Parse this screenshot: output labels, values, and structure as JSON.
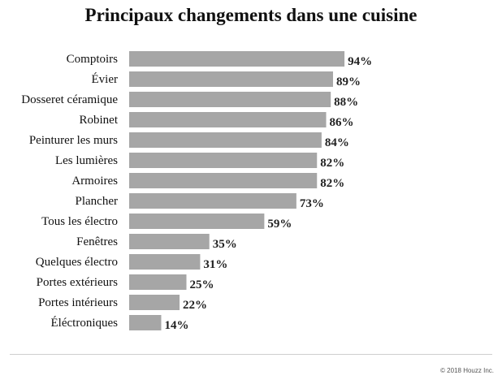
{
  "chart_data": {
    "type": "bar",
    "orientation": "horizontal",
    "title": "Principaux changements dans une cuisine",
    "categories": [
      "Comptoirs",
      "Évier",
      "Dosseret céramique",
      "Robinet",
      "Peinturer les murs",
      "Les lumières",
      "Armoires",
      "Plancher",
      "Tous les électro",
      "Fenêtres",
      "Quelques électro",
      "Portes extérieurs",
      "Portes intérieurs",
      "Éléctroniques"
    ],
    "values": [
      94,
      89,
      88,
      86,
      84,
      82,
      82,
      73,
      59,
      35,
      31,
      25,
      22,
      14
    ],
    "value_labels": [
      "94%",
      "89%",
      "88%",
      "86%",
      "84%",
      "82%",
      "82%",
      "73%",
      "59%",
      "35%",
      "31%",
      "25%",
      "22%",
      "14%"
    ],
    "xlim": [
      0,
      100
    ],
    "grid": false,
    "bar_color": "#a6a6a6"
  },
  "footer": {
    "credit": "© 2018 Houzz Inc."
  }
}
